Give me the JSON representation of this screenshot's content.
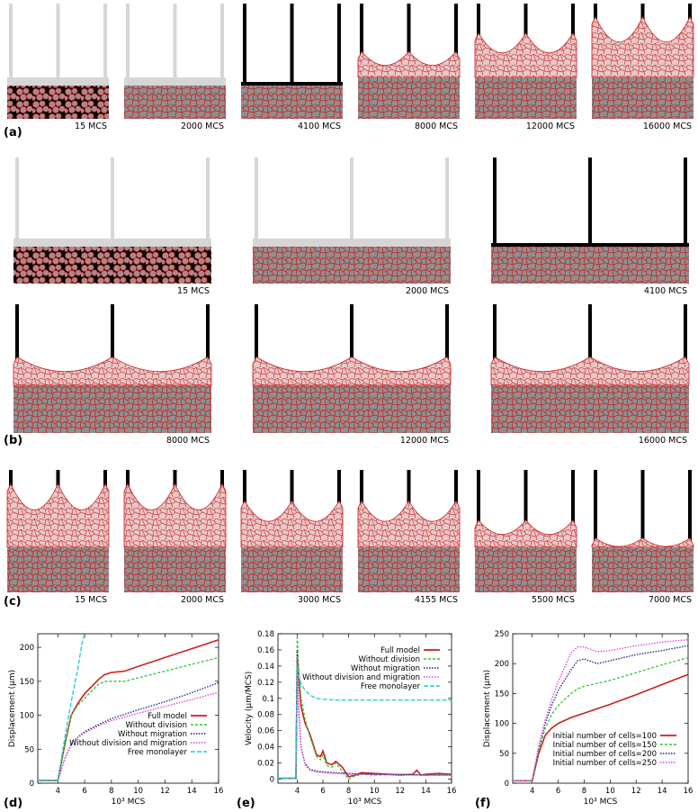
{
  "colors": {
    "cell_fill": "#8f8f8f",
    "cell_edge": "#cc1f1f",
    "pale_fill": "#e6c9c9",
    "pillar_light": "#d6d6d6",
    "pillar_dark": "#000000",
    "full_model": "#cc1f1f",
    "without_division": "#2fc72f",
    "without_migration": "#1a1a8c",
    "without_both": "#e23be2",
    "free_monolayer": "#23c7d6",
    "cells_100": "#cc1f1f",
    "cells_150": "#2fc72f",
    "cells_200": "#1a1a8c",
    "cells_250": "#e23be2"
  },
  "panels": {
    "a": {
      "label": "(a)",
      "frames": [
        {
          "caption": "15 MCS",
          "stage": "seed",
          "pillars": "light"
        },
        {
          "caption": "2000 MCS",
          "stage": "confluent",
          "pillars": "light"
        },
        {
          "caption": "4100 MCS",
          "stage": "confluent",
          "pillars": "dark"
        },
        {
          "caption": "8000 MCS",
          "stage": "growing",
          "pillars": "dark"
        },
        {
          "caption": "12000 MCS",
          "stage": "grown",
          "pillars": "dark"
        },
        {
          "caption": "16000 MCS",
          "stage": "full",
          "pillars": "dark"
        }
      ]
    },
    "b": {
      "label": "(b)",
      "frames": [
        {
          "caption": "15 MCS",
          "stage": "seed",
          "pillars": "light"
        },
        {
          "caption": "2000 MCS",
          "stage": "confluent",
          "pillars": "light"
        },
        {
          "caption": "4100 MCS",
          "stage": "confluent",
          "pillars": "dark"
        },
        {
          "caption": "8000 MCS",
          "stage": "growing",
          "pillars": "dark"
        },
        {
          "caption": "12000 MCS",
          "stage": "growing",
          "pillars": "dark"
        },
        {
          "caption": "16000 MCS",
          "stage": "growing",
          "pillars": "dark"
        }
      ]
    },
    "c": {
      "label": "(c)",
      "frames": [
        {
          "caption": "15 MCS",
          "stage": "full",
          "pillars": "dark"
        },
        {
          "caption": "2000 MCS",
          "stage": "full",
          "pillars": "dark"
        },
        {
          "caption": "3000 MCS",
          "stage": "grown",
          "pillars": "dark"
        },
        {
          "caption": "4155 MCS",
          "stage": "grown",
          "pillars": "dark"
        },
        {
          "caption": "5500 MCS",
          "stage": "growing",
          "pillars": "dark"
        },
        {
          "caption": "7000 MCS",
          "stage": "low",
          "pillars": "dark"
        }
      ]
    }
  },
  "chart_data": [
    {
      "id": "d",
      "panel_label": "(d)",
      "type": "line",
      "xlabel": "10³ MCS",
      "ylabel": "Displacement (μm)",
      "xlim": [
        2.5,
        16
      ],
      "ylim": [
        0,
        220
      ],
      "xticks": [
        4,
        6,
        8,
        10,
        12,
        14,
        16
      ],
      "yticks": [
        0,
        50,
        100,
        150,
        200
      ],
      "ytick_labels": [
        "0",
        "50",
        "100",
        "150",
        "200"
      ],
      "legend_position": "bottom-right",
      "series": [
        {
          "name": "Full model",
          "color_key": "full_model",
          "dash": "",
          "x": [
            2.5,
            3.9,
            4.0,
            4.5,
            5.0,
            5.5,
            6.0,
            6.5,
            7.0,
            7.5,
            8.0,
            9.0,
            10.0,
            12.0,
            14.0,
            16.0
          ],
          "y": [
            4,
            4,
            4,
            55,
            100,
            118,
            132,
            142,
            152,
            160,
            163,
            165,
            172,
            185,
            198,
            211
          ]
        },
        {
          "name": "Without division",
          "color_key": "without_division",
          "dash": "3,2",
          "x": [
            2.5,
            3.9,
            4.0,
            4.5,
            5.0,
            5.5,
            6.0,
            6.5,
            7.0,
            7.5,
            8.0,
            9.0,
            10.0,
            12.0,
            14.0,
            16.0
          ],
          "y": [
            4,
            4,
            4,
            55,
            100,
            115,
            125,
            135,
            145,
            150,
            150,
            150,
            155,
            165,
            175,
            185
          ]
        },
        {
          "name": "Without migration",
          "color_key": "without_migration",
          "dash": "1.5,1.5",
          "x": [
            2.5,
            3.9,
            4.0,
            4.5,
            5.0,
            5.5,
            6.0,
            7.0,
            8.0,
            10.0,
            12.0,
            14.0,
            16.0
          ],
          "y": [
            4,
            4,
            4,
            35,
            58,
            68,
            76,
            86,
            95,
            108,
            120,
            133,
            148
          ]
        },
        {
          "name": "Without division and migration",
          "color_key": "without_both",
          "dash": "1.5,1.5",
          "x": [
            2.5,
            3.9,
            4.0,
            4.5,
            5.0,
            5.5,
            6.0,
            7.0,
            8.0,
            10.0,
            12.0,
            14.0,
            16.0
          ],
          "y": [
            4,
            4,
            4,
            35,
            57,
            67,
            74,
            84,
            92,
            103,
            113,
            123,
            134
          ]
        },
        {
          "name": "Free monolayer",
          "color_key": "free_monolayer",
          "dash": "5,2",
          "x": [
            2.5,
            3.9,
            4.0,
            4.5,
            5.0,
            5.5,
            5.8,
            6.0
          ],
          "y": [
            4,
            4,
            4,
            65,
            120,
            170,
            205,
            220
          ]
        }
      ]
    },
    {
      "id": "e",
      "panel_label": "(e)",
      "type": "line",
      "xlabel": "10³ MCS",
      "ylabel": "Velocity (μm/MCS)",
      "xlim": [
        2.5,
        16
      ],
      "ylim": [
        -0.005,
        0.18
      ],
      "xticks": [
        4,
        6,
        8,
        10,
        12,
        14,
        16
      ],
      "yticks": [
        0,
        0.02,
        0.04,
        0.06,
        0.08,
        0.1,
        0.12,
        0.14,
        0.16,
        0.18
      ],
      "ytick_labels": [
        "0",
        "0.02",
        "0.04",
        "0.06",
        "0.08",
        "0.1",
        "0.12",
        "0.14",
        "0.16",
        "0.18"
      ],
      "legend_position": "top-right",
      "series": [
        {
          "name": "Full model",
          "color_key": "full_model",
          "dash": "",
          "x": [
            2.5,
            3.9,
            4.0,
            4.1,
            4.3,
            4.6,
            5.0,
            5.5,
            5.8,
            6.0,
            6.3,
            6.7,
            7.0,
            7.5,
            8.0,
            8.5,
            9.0,
            10.0,
            11.0,
            12.0,
            13.0,
            13.3,
            13.6,
            14.0,
            15.0,
            16.0
          ],
          "y": [
            0.001,
            0.001,
            0.15,
            0.13,
            0.09,
            0.07,
            0.055,
            0.03,
            0.028,
            0.035,
            0.02,
            0.018,
            0.022,
            0.015,
            0.003,
            0.005,
            0.008,
            0.007,
            0.006,
            0.005,
            0.006,
            0.011,
            0.005,
            0.006,
            0.007,
            0.006
          ]
        },
        {
          "name": "Without division",
          "color_key": "without_division",
          "dash": "3,2",
          "x": [
            2.5,
            3.9,
            4.0,
            4.1,
            4.3,
            4.6,
            5.0,
            5.5,
            5.8,
            6.0,
            6.3,
            6.7,
            7.0,
            7.5,
            8.0,
            8.5,
            9.0,
            10.0,
            12.0,
            14.0,
            16.0
          ],
          "y": [
            0.001,
            0.001,
            0.178,
            0.14,
            0.1,
            0.075,
            0.052,
            0.028,
            0.024,
            0.03,
            0.017,
            0.015,
            0.02,
            0.01,
            0.0,
            0.004,
            0.006,
            0.005,
            0.006,
            0.005,
            0.006
          ]
        },
        {
          "name": "Without migration",
          "color_key": "without_migration",
          "dash": "1.5,1.5",
          "x": [
            2.5,
            3.9,
            4.0,
            4.1,
            4.3,
            4.6,
            5.0,
            5.5,
            6.0,
            7.0,
            8.0,
            10.0,
            12.0,
            14.0,
            16.0
          ],
          "y": [
            0.001,
            0.001,
            0.16,
            0.09,
            0.04,
            0.02,
            0.012,
            0.01,
            0.009,
            0.008,
            0.007,
            0.006,
            0.006,
            0.005,
            0.005
          ]
        },
        {
          "name": "Without division and migration",
          "color_key": "without_both",
          "dash": "1.5,1.5",
          "x": [
            2.5,
            3.9,
            4.0,
            4.1,
            4.3,
            4.6,
            5.0,
            5.5,
            6.0,
            7.0,
            8.0,
            10.0,
            12.0,
            14.0,
            16.0
          ],
          "y": [
            0.001,
            0.001,
            0.15,
            0.085,
            0.038,
            0.018,
            0.011,
            0.009,
            0.008,
            0.007,
            0.006,
            0.006,
            0.005,
            0.005,
            0.005
          ]
        },
        {
          "name": "Free monolayer",
          "color_key": "free_monolayer",
          "dash": "5,2",
          "x": [
            2.5,
            3.9,
            4.0,
            4.1,
            4.3,
            4.6,
            5.0,
            5.5,
            6.0,
            7.0,
            8.0,
            10.0,
            12.0,
            14.0,
            16.0
          ],
          "y": [
            0.001,
            0.001,
            0.14,
            0.128,
            0.118,
            0.11,
            0.104,
            0.1,
            0.099,
            0.098,
            0.098,
            0.098,
            0.098,
            0.098,
            0.098
          ]
        }
      ]
    },
    {
      "id": "f",
      "panel_label": "(f)",
      "type": "line",
      "xlabel": "10³ MCS",
      "ylabel": "Displacement (μm)",
      "xlim": [
        2.5,
        16
      ],
      "ylim": [
        0,
        250
      ],
      "xticks": [
        4,
        6,
        8,
        10,
        12,
        14,
        16
      ],
      "yticks": [
        0,
        50,
        100,
        150,
        200,
        250
      ],
      "ytick_labels": [
        "0",
        "50",
        "100",
        "150",
        "200",
        "250"
      ],
      "legend_position": "bottom-right",
      "series": [
        {
          "name": "Initial number of cells=100",
          "color_key": "cells_100",
          "dash": "",
          "x": [
            2.5,
            3.9,
            4.0,
            4.5,
            5.0,
            5.5,
            6.0,
            7.0,
            8.0,
            10.0,
            12.0,
            14.0,
            16.0
          ],
          "y": [
            4,
            4,
            4,
            50,
            80,
            92,
            100,
            110,
            117,
            132,
            148,
            165,
            182
          ]
        },
        {
          "name": "Initial number of cells=150",
          "color_key": "cells_150",
          "dash": "3,2",
          "x": [
            2.5,
            3.9,
            4.0,
            4.5,
            5.0,
            5.5,
            6.0,
            7.0,
            7.5,
            8.0,
            10.0,
            12.0,
            14.0,
            16.0
          ],
          "y": [
            4,
            4,
            4,
            55,
            92,
            115,
            130,
            150,
            158,
            162,
            172,
            185,
            198,
            210
          ]
        },
        {
          "name": "Initial number of cells=200",
          "color_key": "cells_200",
          "dash": "1.5,1.5",
          "x": [
            2.5,
            3.9,
            4.0,
            4.5,
            5.0,
            5.5,
            6.0,
            7.0,
            7.5,
            8.0,
            9.0,
            10.0,
            12.0,
            14.0,
            16.0
          ],
          "y": [
            4,
            4,
            4,
            60,
            100,
            130,
            155,
            190,
            205,
            208,
            200,
            205,
            215,
            222,
            230
          ]
        },
        {
          "name": "Initial number of cells=250",
          "color_key": "cells_250",
          "dash": "1.5,1.5",
          "x": [
            2.5,
            3.9,
            4.0,
            4.5,
            5.0,
            5.5,
            6.0,
            7.0,
            7.5,
            8.0,
            9.0,
            10.0,
            12.0,
            14.0,
            16.0
          ],
          "y": [
            4,
            4,
            4,
            62,
            105,
            140,
            170,
            218,
            228,
            228,
            220,
            222,
            230,
            236,
            240
          ]
        }
      ]
    }
  ]
}
